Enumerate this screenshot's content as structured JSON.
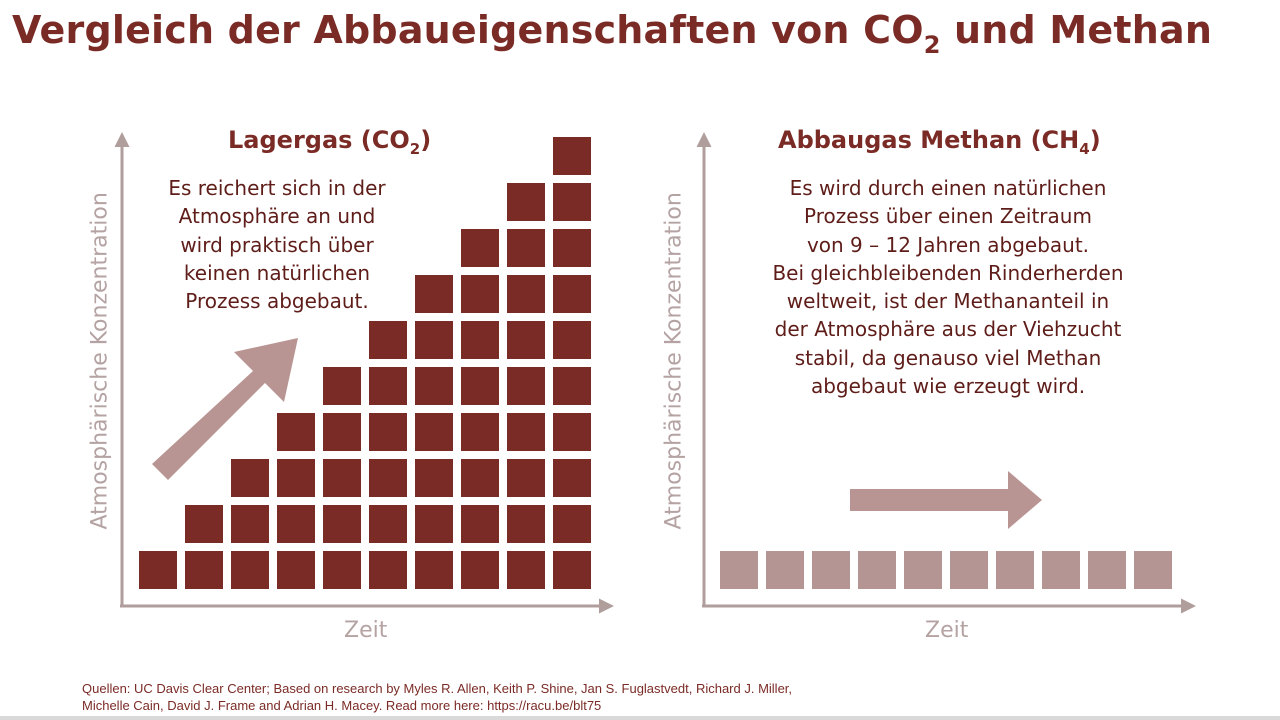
{
  "title": {
    "main": "Vergleich der Abbaueigenschaften von CO",
    "sub": "2",
    "tail": " und Methan"
  },
  "left_panel": {
    "title_main": "Lagergas (CO",
    "title_sub": "2",
    "title_tail": ")",
    "description": [
      "Es reichert sich in der",
      "Atmosphäre an und",
      "wird praktisch über",
      "keinen natürlichen",
      "Prozess abgebaut."
    ],
    "x_label": "Zeit",
    "y_label": "Atmosphärische Konzentration",
    "column_heights": [
      1,
      2,
      3,
      4,
      5,
      6,
      7,
      8,
      9,
      10
    ]
  },
  "right_panel": {
    "title_main": "Abbaugas Methan (CH",
    "title_sub": "4",
    "title_tail": ")",
    "description": [
      "Es wird durch einen natürlichen",
      "Prozess über einen Zeitraum",
      "von 9 – 12 Jahren abgebaut.",
      "Bei gleichbleibenden Rinderherden",
      "weltweit, ist der Methananteil in",
      "der Atmosphäre aus der Viehzucht",
      "stabil, da genauso viel Methan",
      "abgebaut wie erzeugt wird."
    ],
    "x_label": "Zeit",
    "y_label": "Atmosphärische Konzentration",
    "column_heights": [
      1,
      1,
      1,
      1,
      1,
      1,
      1,
      1,
      1,
      1
    ]
  },
  "sources": [
    "Quellen: UC Davis Clear Center; Based on research by Myles R. Allen, Keith P. Shine, Jan S. Fuglastvedt, Richard J. Miller,",
    "Michelle Cain, David J. Frame and Adrian H. Macey. Read more here: https://racu.be/blt75"
  ],
  "colors": {
    "title": "#7b2b26",
    "block_dark": "#7b2b26",
    "block_light": "#b59593",
    "axis": "#b09e9d",
    "arrow": "#b89593"
  }
}
